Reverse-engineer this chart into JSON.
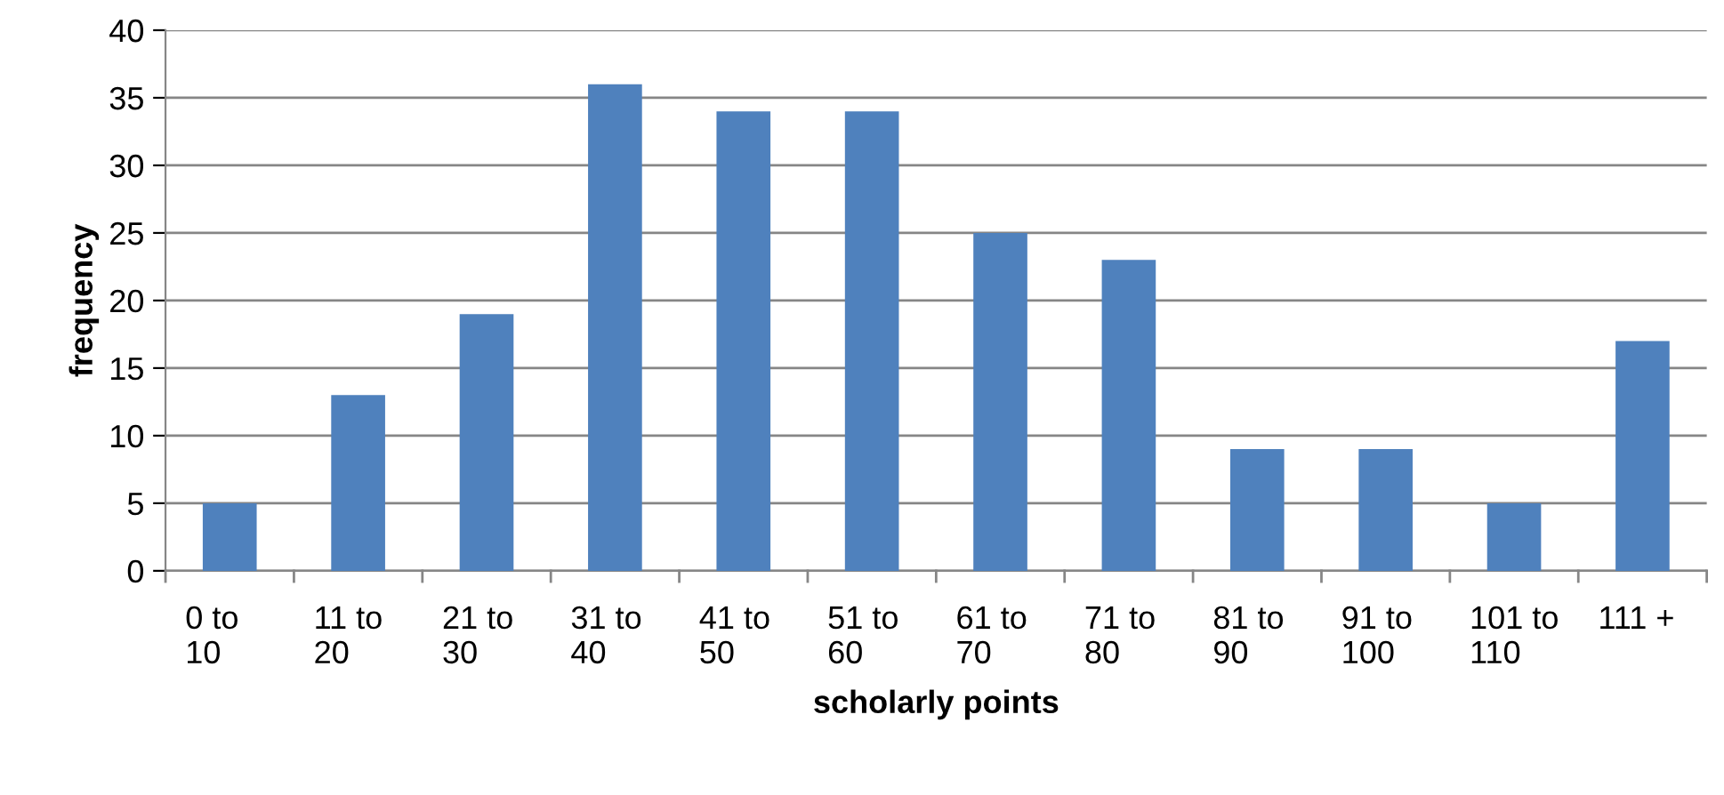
{
  "chart_data": {
    "type": "bar",
    "xlabel": "scholarly points",
    "ylabel": "frequency",
    "categories": [
      "0 to\n10",
      "11 to\n20",
      "21 to\n30",
      "31 to\n40",
      "41 to\n50",
      "51 to\n60",
      "61 to\n70",
      "71 to\n80",
      "81 to\n90",
      "91 to\n100",
      "101 to\n110",
      "111 +"
    ],
    "values": [
      5,
      13,
      19,
      36,
      34,
      34,
      25,
      23,
      9,
      9,
      5,
      17
    ],
    "color": "#4f81bd",
    "ylim": [
      0,
      40
    ],
    "yticks": [
      0,
      5,
      10,
      15,
      20,
      25,
      30,
      35,
      40
    ],
    "grid": "y",
    "legend": false
  }
}
